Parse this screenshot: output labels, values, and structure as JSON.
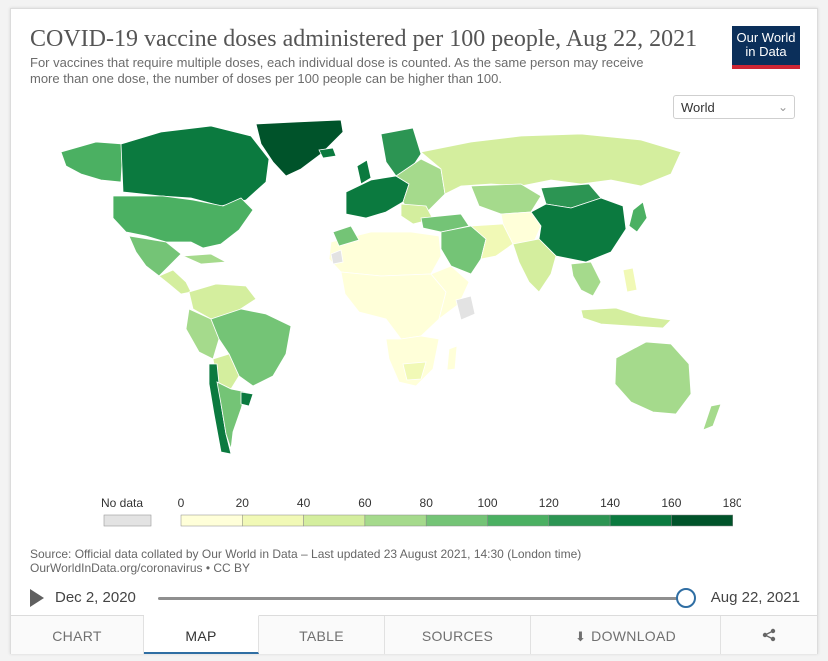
{
  "header": {
    "title": "COVID-19 vaccine doses administered per 100 people, Aug 22, 2021",
    "subtitle": "For vaccines that require multiple doses, each individual dose is counted. As the same person may receive more than one dose, the number of doses per 100 people can be higher than 100."
  },
  "logo": {
    "line1": "Our World",
    "line2": "in Data",
    "bg": "#0b2f5a",
    "stripe": "#ce2634"
  },
  "region_select": {
    "value": "World"
  },
  "legend": {
    "no_data_label": "No data",
    "no_data_color": "#e3e3e3",
    "ticks": [
      "0",
      "20",
      "40",
      "60",
      "80",
      "100",
      "120",
      "140",
      "160",
      "180"
    ],
    "colors": [
      "#ffffd9",
      "#f1f9b6",
      "#d4ee9e",
      "#a5da8c",
      "#74c476",
      "#4bb062",
      "#2c9553",
      "#0b7a3f",
      "#00532a"
    ]
  },
  "source": {
    "line1": "Source: Official data collated by Our World in Data – Last updated 23 August 2021, 14:30 (London time)",
    "line2": "OurWorldInData.org/coronavirus • CC BY"
  },
  "timeline": {
    "start": "Dec 2, 2020",
    "end": "Aug 22, 2021",
    "position": 1.0
  },
  "tabs": [
    {
      "label": "CHART"
    },
    {
      "label": "MAP",
      "active": true
    },
    {
      "label": "TABLE"
    },
    {
      "label": "SOURCES"
    },
    {
      "label": "DOWNLOAD"
    }
  ],
  "icons": {
    "share": "share-icon",
    "download": "download-icon",
    "play": "play-icon"
  }
}
